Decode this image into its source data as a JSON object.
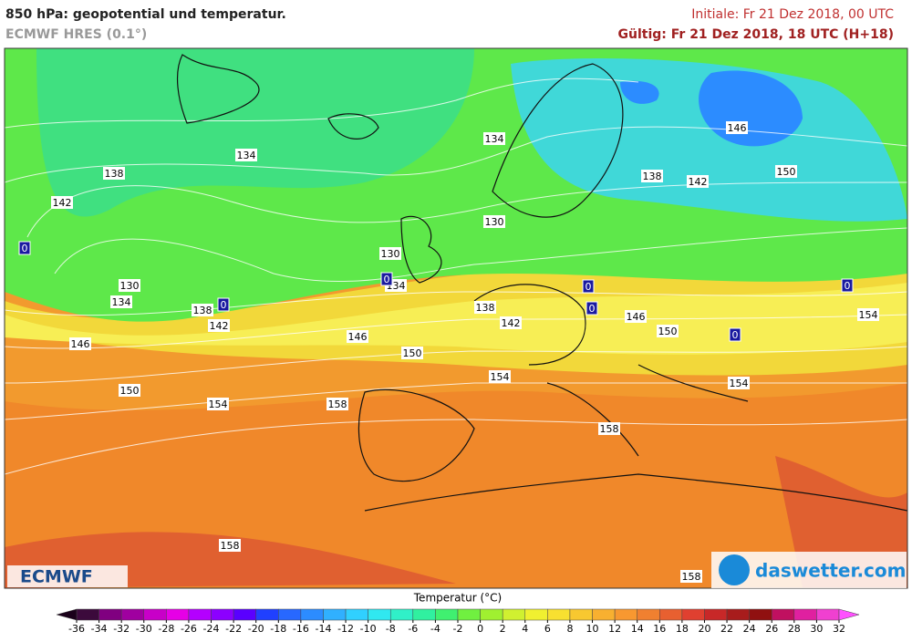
{
  "header": {
    "title": "850 hPa: geopotential und temperatur.",
    "model": "ECMWF HRES (0.1°)",
    "init": "Initiale: Fr 21 Dez 2018, 00 UTC",
    "valid": "Gültig: Fr 21 Dez 2018, 18 UTC (H+18)"
  },
  "map": {
    "contour_labels": [
      "134",
      "138",
      "142",
      "134",
      "146",
      "138",
      "142",
      "150",
      "130",
      "130",
      "130",
      "134",
      "134",
      "138",
      "142",
      "146",
      "146",
      "138",
      "142",
      "146",
      "150",
      "154",
      "150",
      "154",
      "154",
      "150",
      "154",
      "158",
      "158",
      "158",
      "158"
    ],
    "freezing_labels": [
      "0",
      "0",
      "0",
      "0",
      "0",
      "0",
      "0"
    ]
  },
  "logos": {
    "left": "ECMWF",
    "right": "daswetter.com"
  },
  "colorbar": {
    "title": "Temperatur (°C)",
    "ticks": [
      -36,
      -34,
      -32,
      -30,
      -28,
      -26,
      -24,
      -22,
      -20,
      -18,
      -16,
      -14,
      -12,
      -10,
      -8,
      -6,
      -4,
      -2,
      0,
      2,
      4,
      6,
      8,
      10,
      12,
      14,
      16,
      18,
      20,
      22,
      24,
      26,
      28,
      30,
      32
    ],
    "colors": [
      "#3c0a3c",
      "#800080",
      "#a000a0",
      "#c800c8",
      "#e600e6",
      "#b400ff",
      "#8c00ff",
      "#5a00ff",
      "#2040ff",
      "#2868ff",
      "#2c8cff",
      "#30b0ff",
      "#30d0ff",
      "#30e8f0",
      "#30f0c8",
      "#30f0a0",
      "#40f070",
      "#70f040",
      "#a0f030",
      "#d0f030",
      "#f0f030",
      "#f8e030",
      "#f8c830",
      "#f8b030",
      "#f89830",
      "#f08030",
      "#e86030",
      "#e04030",
      "#c82828",
      "#a81c1c",
      "#901010",
      "#c01060",
      "#e020a0",
      "#f040d0"
    ],
    "under_color": "#1a001a",
    "over_color": "#ff50ff"
  }
}
